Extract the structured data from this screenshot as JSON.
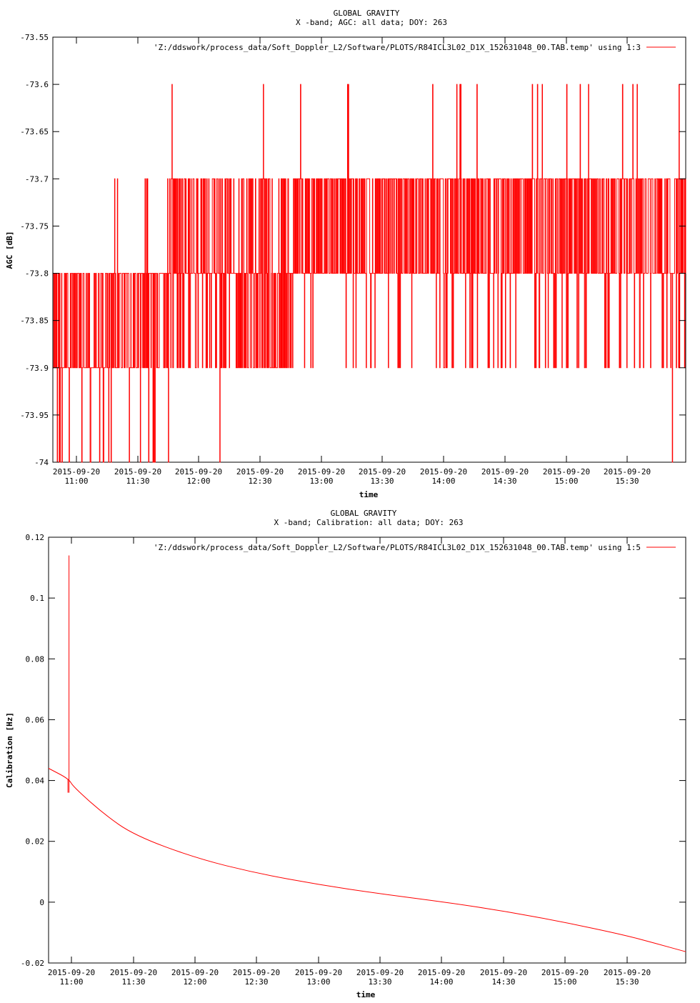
{
  "colors": {
    "series": "#ff0000",
    "axes": "#000000",
    "background": "#ffffff"
  },
  "chart_data": [
    {
      "type": "line",
      "title": "GLOBAL GRAVITY",
      "subtitle": "X -band; AGC: all data; DOY: 263",
      "xlabel": "time",
      "ylabel": "AGC [dB]",
      "legend_placement": "top-right",
      "grid": false,
      "xlim": [
        "2015-09-20 10:48",
        "2015-09-20 16:00"
      ],
      "ylim": [
        -74,
        -73.55
      ],
      "yticks": [
        "-73.55",
        "-73.6",
        "-73.65",
        "-73.7",
        "-73.75",
        "-73.8",
        "-73.85",
        "-73.9",
        "-73.95",
        "-74"
      ],
      "xtick_dates": [
        "2015-09-20",
        "2015-09-20",
        "2015-09-20",
        "2015-09-20",
        "2015-09-20",
        "2015-09-20",
        "2015-09-20",
        "2015-09-20",
        "2015-09-20",
        "2015-09-20"
      ],
      "xtick_times": [
        "11:00",
        "11:30",
        "12:00",
        "12:30",
        "13:00",
        "13:30",
        "14:00",
        "14:30",
        "15:00",
        "15:30"
      ],
      "series": [
        {
          "name": "'Z:/ddswork/process_data/Soft_Doppler_L2/Software/PLOTS/R84ICL3L02_D1X_152631048_00.TAB.temp' using 1:3",
          "summary": "quantized AGC toggling between levels",
          "levels": [
            -74,
            -73.9,
            -73.8,
            -73.7,
            -73.6
          ]
        }
      ]
    },
    {
      "type": "line",
      "title": "GLOBAL GRAVITY",
      "subtitle": "X -band; Calibration: all data; DOY: 263",
      "xlabel": "time",
      "ylabel": "Calibration [Hz]",
      "legend_placement": "top-right",
      "grid": false,
      "xlim": [
        "2015-09-20 10:48",
        "2015-09-20 16:00"
      ],
      "ylim": [
        -0.02,
        0.12
      ],
      "yticks": [
        "0.12",
        "0.1",
        "0.08",
        "0.06",
        "0.04",
        "0.02",
        "0",
        "-0.02"
      ],
      "xtick_dates": [
        "2015-09-20",
        "2015-09-20",
        "2015-09-20",
        "2015-09-20",
        "2015-09-20",
        "2015-09-20",
        "2015-09-20",
        "2015-09-20",
        "2015-09-20",
        "2015-09-20"
      ],
      "xtick_times": [
        "11:00",
        "11:30",
        "12:00",
        "12:30",
        "13:00",
        "13:30",
        "14:00",
        "14:30",
        "15:00",
        "15:30"
      ],
      "series": [
        {
          "name": "'Z:/ddswork/process_data/Soft_Doppler_L2/Software/PLOTS/R84ICL3L02_D1X_152631048_00.TAB.temp' using 1:5",
          "x": [
            "2015-09-20 10:48",
            "2015-09-20 10:58",
            "2015-09-20 11:00",
            "2015-09-20 11:15",
            "2015-09-20 11:30",
            "2015-09-20 12:00",
            "2015-09-20 12:30",
            "2015-09-20 13:00",
            "2015-09-20 13:30",
            "2015-09-20 14:00",
            "2015-09-20 14:30",
            "2015-09-20 15:00",
            "2015-09-20 15:30",
            "2015-09-20 15:45",
            "2015-09-20 16:00"
          ],
          "y": [
            0.044,
            0.0405,
            0.038,
            0.029,
            0.022,
            0.0145,
            0.0095,
            0.0058,
            0.0028,
            0.0002,
            -0.0028,
            -0.0065,
            -0.0108,
            -0.0135,
            -0.0163
          ],
          "spike": {
            "x": "2015-09-20 10:58",
            "y_max": 0.114,
            "y_min": 0.036
          }
        }
      ]
    }
  ]
}
